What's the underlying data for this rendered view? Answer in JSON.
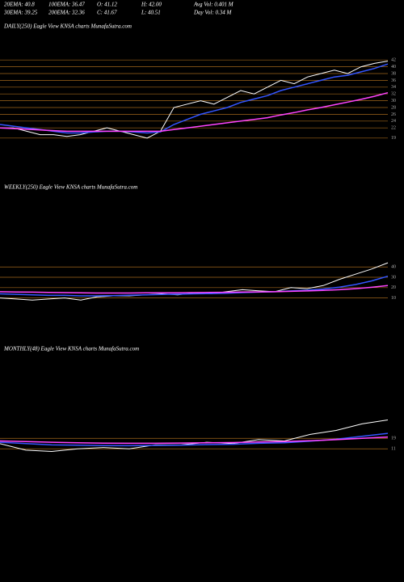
{
  "header": {
    "items": [
      [
        "20EMA: 40.8",
        "100EMA: 36.47",
        "O: 41.12",
        "H: 42.00",
        "Avg Vol: 0.401 M"
      ],
      [
        "30EMA: 39.25",
        "200EMA: 32.36",
        "C: 41.67",
        "L: 40.51",
        "Day Vol: 0.34 M"
      ]
    ]
  },
  "chart_data": [
    {
      "type": "line",
      "title": "DAILY(250) Eagle  View  KNSA charts MunafaSutra.com",
      "ylim": [
        18,
        43
      ],
      "yticks": [
        42,
        40,
        38,
        36,
        34,
        32,
        30,
        28,
        26,
        24,
        22,
        19
      ],
      "grid": true,
      "grid_color": "#a0661a",
      "series": [
        {
          "color": "#ffffff",
          "values": [
            22,
            22,
            21,
            20,
            20,
            19.5,
            20,
            21,
            22,
            21,
            20,
            19,
            21,
            28,
            29,
            30,
            29,
            31,
            33,
            32,
            34,
            36,
            35,
            37,
            38,
            39,
            38,
            40,
            41,
            41.67
          ]
        },
        {
          "color": "#3355ff",
          "values": [
            23,
            22.5,
            22,
            21.5,
            21,
            20.5,
            20.5,
            20.8,
            21,
            21,
            20.8,
            20.5,
            20.8,
            23,
            24.5,
            26,
            27,
            28,
            29.5,
            30.5,
            31.5,
            33,
            34,
            35,
            36,
            37,
            37.5,
            38.5,
            39.5,
            40.8
          ]
        },
        {
          "color": "#ff44ff",
          "values": [
            22,
            21.8,
            21.6,
            21.4,
            21.2,
            21,
            21,
            21,
            21,
            21,
            21,
            21,
            21,
            21.5,
            22,
            22.5,
            23,
            23.5,
            24,
            24.5,
            25,
            25.8,
            26.5,
            27.3,
            28,
            28.8,
            29.6,
            30.4,
            31.3,
            32.36
          ]
        }
      ]
    },
    {
      "type": "line",
      "title": "WEEKLY(250) Eagle  View  KNSA charts MunafaSutra.com",
      "ylim": [
        5,
        48
      ],
      "yticks": [
        40,
        30,
        20,
        10
      ],
      "grid": true,
      "grid_color": "#a0661a",
      "series": [
        {
          "color": "#ffffff",
          "values": [
            10,
            9,
            8,
            9,
            10,
            8,
            11,
            12,
            12,
            13,
            14,
            13,
            15,
            14,
            16,
            18,
            17,
            16,
            20,
            19,
            22,
            28,
            33,
            38,
            44
          ]
        },
        {
          "color": "#3355ff",
          "values": [
            14,
            13.5,
            13,
            12.5,
            12.5,
            12,
            12,
            12.3,
            12.6,
            13,
            13.4,
            13.6,
            14,
            14.2,
            14.6,
            15.2,
            15.6,
            16,
            16.8,
            17.5,
            18.6,
            20.5,
            23,
            26.5,
            31
          ]
        },
        {
          "color": "#ff44ff",
          "values": [
            16,
            15.8,
            15.6,
            15.4,
            15.2,
            15,
            14.8,
            14.8,
            14.8,
            14.9,
            15,
            15,
            15.2,
            15.3,
            15.5,
            15.7,
            15.9,
            16,
            16.4,
            16.8,
            17.3,
            18,
            19,
            20.3,
            22
          ]
        }
      ]
    },
    {
      "type": "line",
      "title": "MONTHLY(48) Eagle  View  KNSA charts MunafaSutra.com",
      "ylim": [
        5,
        45
      ],
      "yticks": [
        19,
        11
      ],
      "grid": true,
      "grid_color": "#a0661a",
      "series": [
        {
          "color": "#ffffff",
          "values": [
            15,
            10,
            9,
            11,
            12,
            11,
            14,
            14,
            16,
            15,
            18,
            17,
            22,
            25,
            30,
            33
          ]
        },
        {
          "color": "#3355ff",
          "values": [
            16,
            15,
            14,
            13.8,
            13.5,
            13.4,
            13.6,
            13.8,
            14.2,
            14.5,
            15.2,
            15.6,
            16.8,
            18.3,
            20.5,
            22.8
          ]
        },
        {
          "color": "#ff44ff",
          "values": [
            17,
            16.5,
            16,
            15.6,
            15.3,
            15.2,
            15.2,
            15.4,
            15.6,
            15.8,
            16.2,
            16.5,
            17.2,
            18,
            19,
            20
          ]
        }
      ]
    }
  ]
}
